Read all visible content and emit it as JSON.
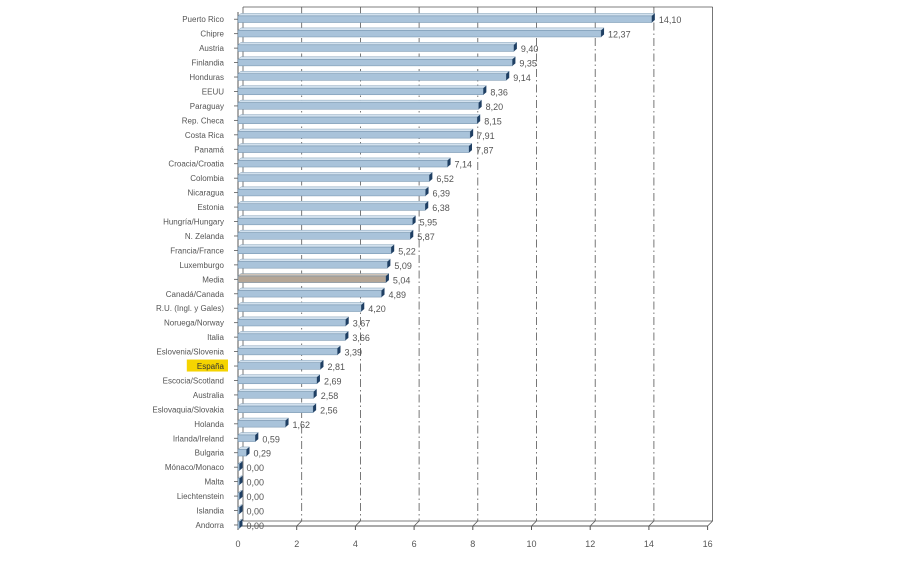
{
  "chart_data": {
    "type": "bar",
    "orientation": "horizontal",
    "categories": [
      "Puerto Rico",
      "Chipre",
      "Austria",
      "Finlandia",
      "Honduras",
      "EEUU",
      "Paraguay",
      "Rep. Checa",
      "Costa Rica",
      "Panamá",
      "Croacia/Croatia",
      "Colombia",
      "Nicaragua",
      "Estonia",
      "Hungría/Hungary",
      "N. Zelanda",
      "Francia/France",
      "Luxemburgo",
      "Media",
      "Canadá/Canada",
      "R.U. (Ingl. y Gales)",
      "Noruega/Norway",
      "Italia",
      "Eslovenia/Slovenia",
      "España",
      "Escocia/Scotland",
      "Australia",
      "Eslovaquia/Slovakia",
      "Holanda",
      "Irlanda/Ireland",
      "Bulgaria",
      "Mónaco/Monaco",
      "Malta",
      "Liechtenstein",
      "Islandia",
      "Andorra"
    ],
    "values": [
      14.1,
      12.37,
      9.4,
      9.35,
      9.14,
      8.36,
      8.2,
      8.15,
      7.91,
      7.87,
      7.14,
      6.52,
      6.39,
      6.38,
      5.95,
      5.87,
      5.22,
      5.09,
      5.04,
      4.89,
      4.2,
      3.67,
      3.66,
      3.39,
      2.81,
      2.69,
      2.58,
      2.56,
      1.62,
      0.59,
      0.29,
      0.0,
      0.0,
      0.0,
      0.0,
      0.0
    ],
    "value_labels": [
      "14,10",
      "12,37",
      "9,40",
      "9,35",
      "9,14",
      "8,36",
      "8,20",
      "8,15",
      "7,91",
      "7,87",
      "7,14",
      "6,52",
      "6,39",
      "6,38",
      "5,95",
      "5,87",
      "5,22",
      "5,09",
      "5,04",
      "4,89",
      "4,20",
      "3,67",
      "3,66",
      "3,39",
      "2,81",
      "2,69",
      "2,58",
      "2,56",
      "1,62",
      "0,59",
      "0,29",
      "0,00",
      "0,00",
      "0,00",
      "0,00",
      "0,00"
    ],
    "xlim": [
      0,
      16
    ],
    "xticks": [
      0,
      2,
      4,
      6,
      8,
      10,
      12,
      14,
      16
    ],
    "grid": "vertical dash-dot lines",
    "highlighted": {
      "Media": "average bar",
      "España": "highlighted label"
    },
    "title": "",
    "xlabel": "",
    "ylabel": ""
  },
  "colors": {
    "bar": "#a9c3da",
    "bar_edge": "#6f8ea9",
    "bar_end": "#1f3f63",
    "media_bar": "#b5a696",
    "highlight_label_bg": "#f5d400",
    "axis": "#555555",
    "grid": "#555555",
    "text": "#555555"
  }
}
